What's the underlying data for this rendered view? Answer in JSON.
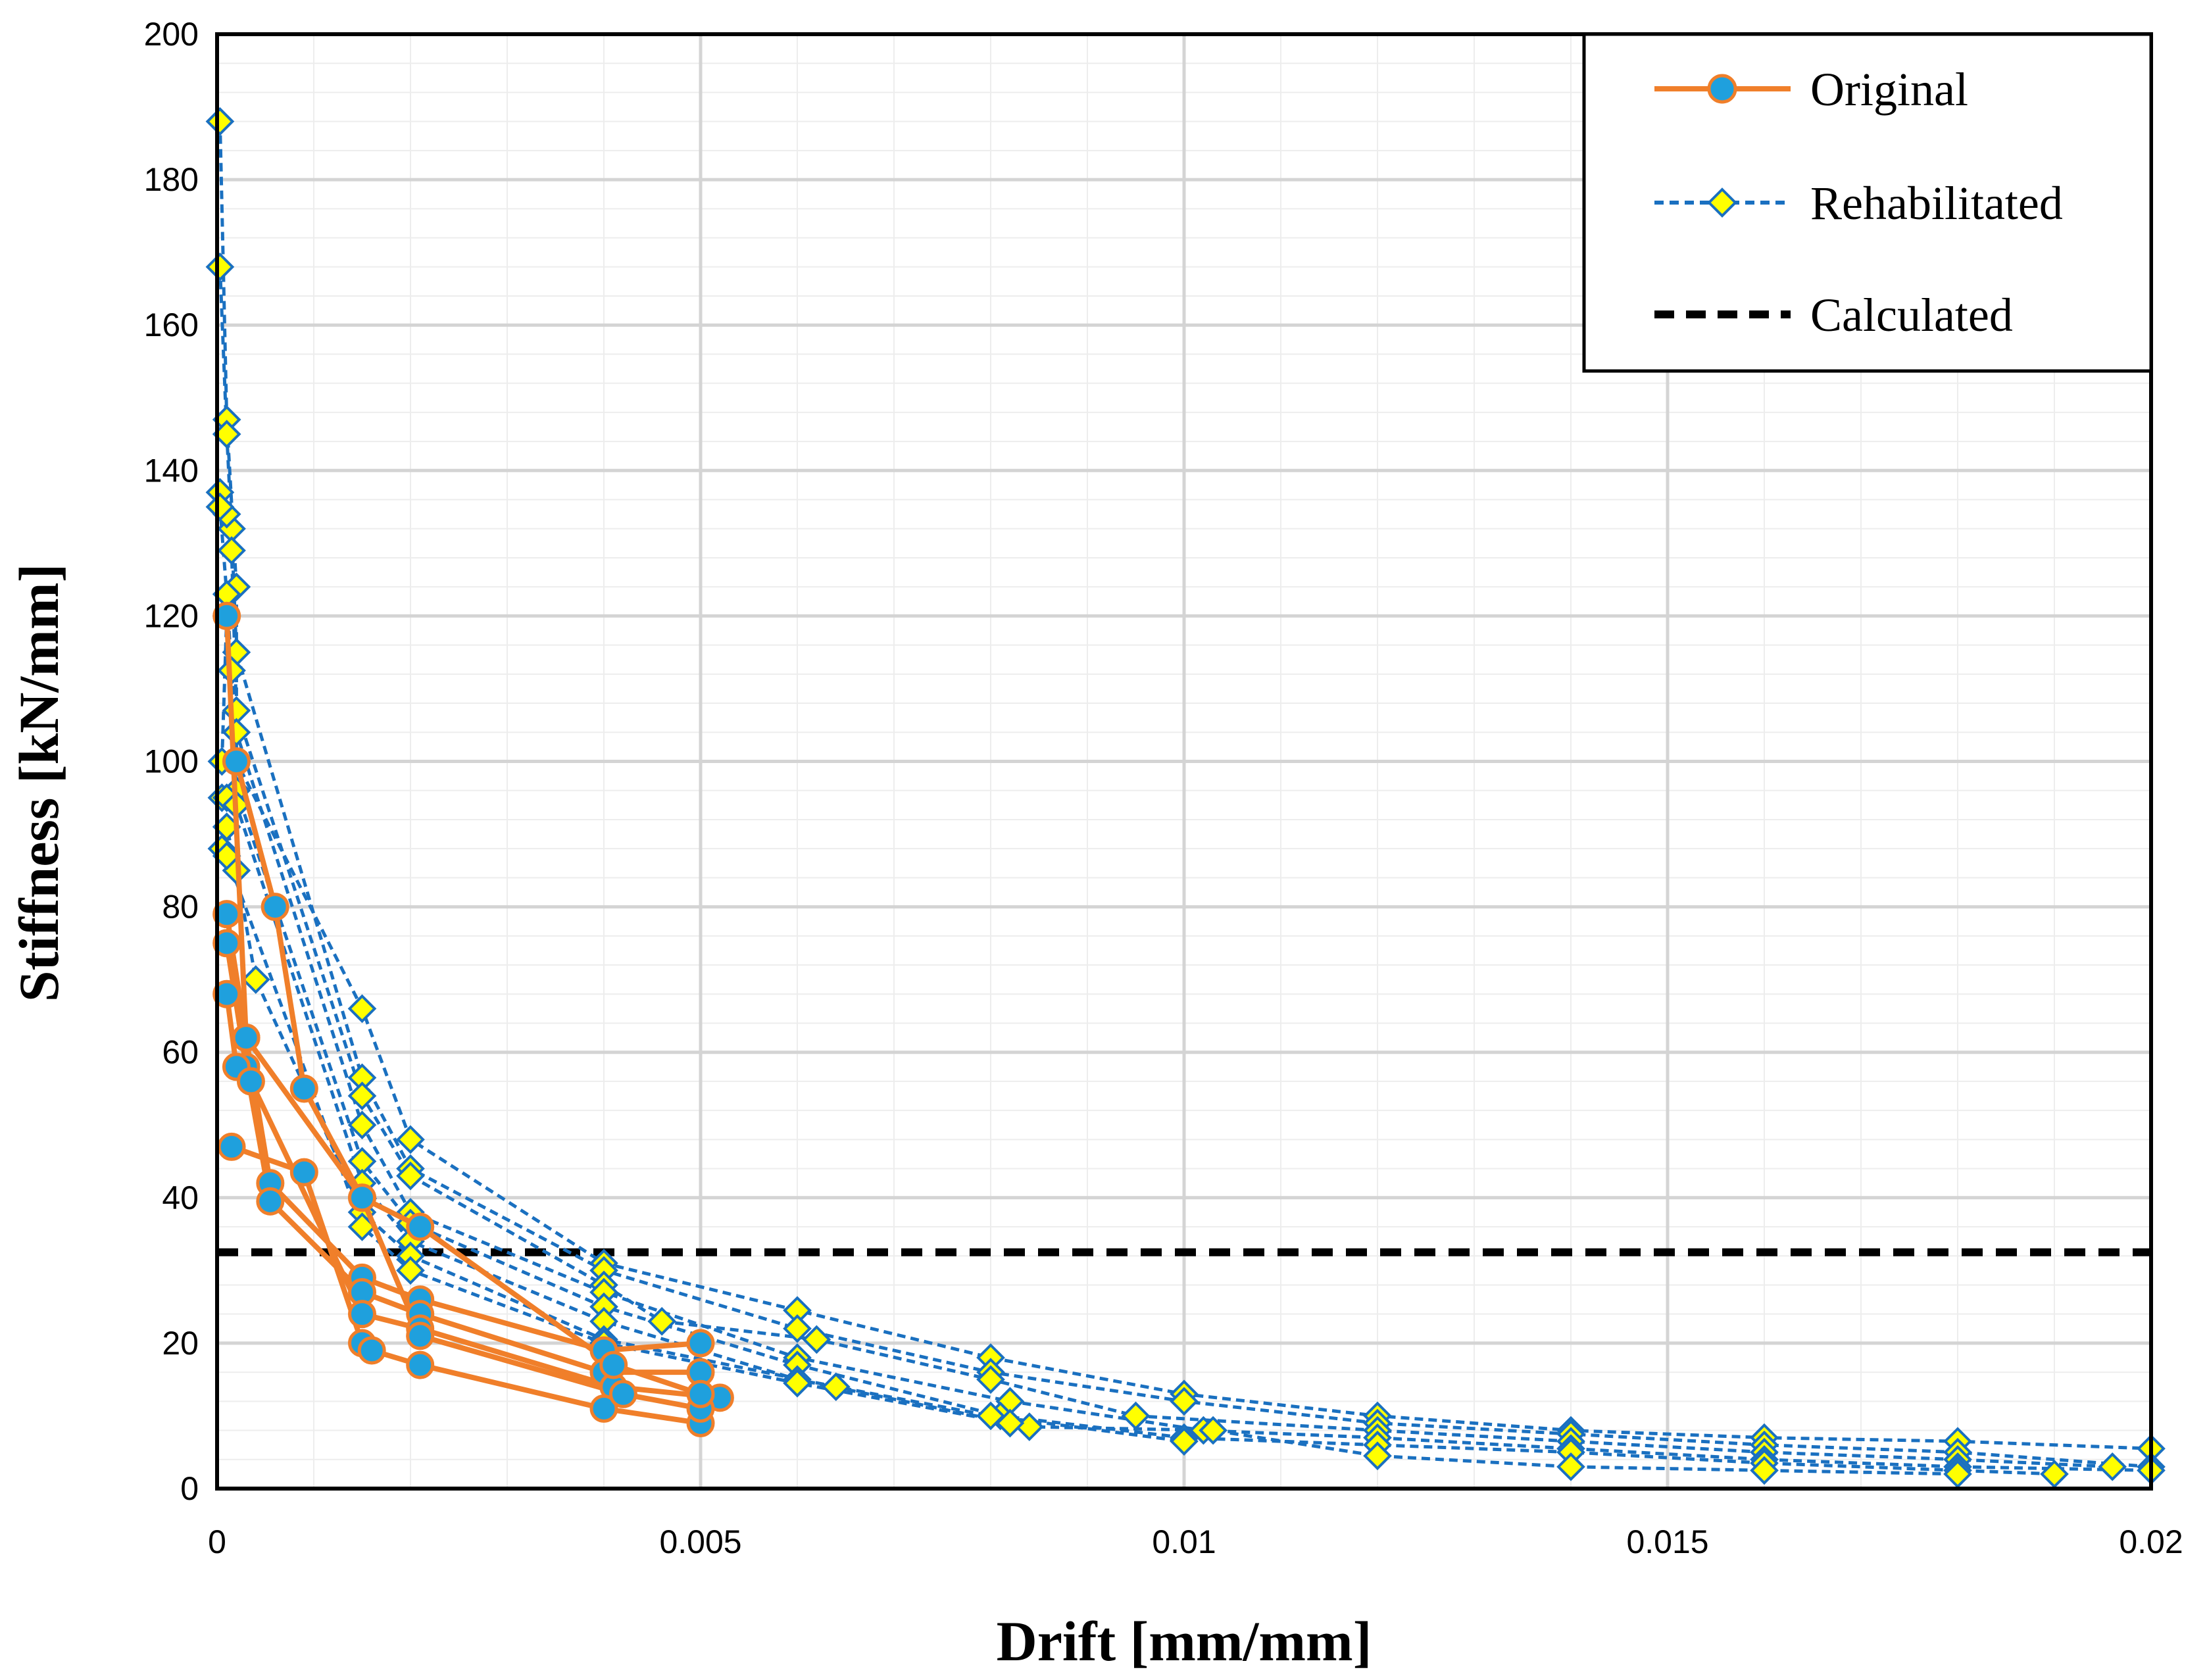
{
  "chart_data": {
    "type": "line",
    "title": "",
    "xlabel": "Drift [mm/mm]",
    "ylabel": "Stiffness  [kN/mm]",
    "xlim": [
      0,
      0.02
    ],
    "ylim": [
      0,
      200
    ],
    "x_ticks": [
      "0",
      "0.005",
      "0.01",
      "0.015",
      "0.02"
    ],
    "x_tick_values": [
      0,
      0.005,
      0.01,
      0.015,
      0.02
    ],
    "y_ticks": [
      "0",
      "20",
      "40",
      "60",
      "80",
      "100",
      "120",
      "140",
      "160",
      "180",
      "200"
    ],
    "y_tick_values": [
      0,
      20,
      40,
      60,
      80,
      100,
      120,
      140,
      160,
      180,
      200
    ],
    "grid": true,
    "minor_grid": true,
    "legend_position": "top-right",
    "colors": {
      "original_line": "#F07F2A",
      "original_marker": "#1FA0DD",
      "rehab_line": "#1A70C0",
      "rehab_marker": "#FFFF00",
      "calculated": "#000000"
    },
    "series": [
      {
        "name": "Original",
        "style": "solid-circle",
        "curves": [
          [
            [
              0.0001,
              79
            ],
            [
              0.0003,
              62
            ],
            [
              0.00055,
              42
            ],
            [
              0.0015,
              29
            ],
            [
              0.0021,
              26
            ],
            [
              0.004,
              19
            ],
            [
              0.005,
              20
            ]
          ],
          [
            [
              0.0001,
              75
            ],
            [
              0.0003,
              58
            ],
            [
              0.00055,
              39.5
            ],
            [
              0.0015,
              27
            ],
            [
              0.0021,
              24
            ],
            [
              0.004,
              16
            ],
            [
              0.005,
              16
            ]
          ],
          [
            [
              0.0001,
              68
            ],
            [
              0.0002,
              58
            ],
            [
              0.00035,
              56
            ],
            [
              0.0015,
              24
            ],
            [
              0.0021,
              22
            ],
            [
              0.0041,
              14
            ],
            [
              0.0052,
              12.5
            ]
          ],
          [
            [
              0.00015,
              47
            ],
            [
              0.0009,
              43.5
            ],
            [
              0.0015,
              20
            ],
            [
              0.0016,
              19
            ],
            [
              0.0021,
              17
            ],
            [
              0.004,
              11
            ],
            [
              0.005,
              9
            ]
          ],
          [
            [
              0.0002,
              100
            ],
            [
              0.0006,
              80
            ],
            [
              0.0009,
              55
            ],
            [
              0.0015,
              40
            ],
            [
              0.0021,
              21
            ],
            [
              0.0042,
              13
            ],
            [
              0.005,
              11
            ]
          ],
          [
            [
              0.0001,
              120
            ],
            [
              0.0003,
              62
            ],
            [
              0.0015,
              40
            ],
            [
              0.0021,
              36
            ],
            [
              0.0041,
              17
            ],
            [
              0.005,
              13
            ]
          ]
        ]
      },
      {
        "name": "Rehabilitated",
        "style": "dashed-diamond",
        "curves": [
          [
            [
              3e-05,
              188
            ],
            [
              0.0001,
              147
            ],
            [
              0.0002,
              124
            ],
            [
              0.0002,
              100
            ],
            [
              0.0015,
              66
            ],
            [
              0.002,
              48
            ],
            [
              0.004,
              31
            ],
            [
              0.006,
              24.5
            ],
            [
              0.008,
              18
            ],
            [
              0.01,
              13
            ],
            [
              0.012,
              10
            ],
            [
              0.014,
              8
            ],
            [
              0.016,
              7
            ],
            [
              0.018,
              6.5
            ],
            [
              0.02,
              5.5
            ]
          ],
          [
            [
              3e-05,
              168
            ],
            [
              0.0001,
              145
            ],
            [
              0.00015,
              132
            ],
            [
              0.0002,
              115
            ],
            [
              0.0015,
              56.5
            ],
            [
              0.002,
              44
            ],
            [
              0.004,
              30
            ],
            [
              0.006,
              22
            ],
            [
              0.008,
              16
            ],
            [
              0.01,
              12
            ],
            [
              0.012,
              9
            ],
            [
              0.014,
              7.5
            ],
            [
              0.016,
              6
            ],
            [
              0.018,
              5
            ],
            [
              0.02,
              3
            ]
          ],
          [
            [
              3e-05,
              137
            ],
            [
              0.0001,
              134
            ],
            [
              0.00015,
              129
            ],
            [
              0.0002,
              107
            ],
            [
              0.0015,
              54
            ],
            [
              0.002,
              43
            ],
            [
              0.004,
              28
            ],
            [
              0.0046,
              23
            ],
            [
              0.0062,
              20.5
            ],
            [
              0.008,
              15
            ],
            [
              0.0095,
              10
            ],
            [
              0.012,
              8
            ],
            [
              0.014,
              6.5
            ],
            [
              0.016,
              5
            ],
            [
              0.018,
              4
            ],
            [
              0.0196,
              3
            ]
          ],
          [
            [
              3e-05,
              135
            ],
            [
              0.0001,
              123
            ],
            [
              0.00015,
              112.5
            ],
            [
              0.0002,
              104
            ],
            [
              0.0015,
              50
            ],
            [
              0.002,
              38
            ],
            [
              0.004,
              27
            ],
            [
              0.006,
              18
            ],
            [
              0.0082,
              12
            ],
            [
              0.0102,
              8
            ],
            [
              0.012,
              7
            ],
            [
              0.014,
              5.5
            ],
            [
              0.016,
              4
            ],
            [
              0.018,
              3
            ],
            [
              0.02,
              2.5
            ]
          ],
          [
            [
              5e-05,
              100
            ],
            [
              0.0001,
              120
            ],
            [
              0.0002,
              96
            ],
            [
              0.0015,
              45
            ],
            [
              0.002,
              36.5
            ],
            [
              0.004,
              25
            ],
            [
              0.006,
              17
            ],
            [
              0.0081,
              10
            ],
            [
              0.01,
              7
            ],
            [
              0.012,
              6
            ],
            [
              0.014,
              5
            ],
            [
              0.016,
              3.5
            ],
            [
              0.018,
              2.5
            ],
            [
              0.019,
              2
            ]
          ],
          [
            [
              5e-05,
              95
            ],
            [
              0.0001,
              95
            ],
            [
              0.0002,
              94
            ],
            [
              0.0015,
              42
            ],
            [
              0.002,
              34
            ],
            [
              0.004,
              23
            ],
            [
              0.006,
              15
            ],
            [
              0.0084,
              8.5
            ],
            [
              0.0103,
              8
            ],
            [
              0.012,
              4.5
            ],
            [
              0.014,
              3
            ],
            [
              0.016,
              2.5
            ],
            [
              0.018,
              2
            ]
          ],
          [
            [
              5e-05,
              88
            ],
            [
              0.0001,
              91
            ],
            [
              0.0002,
              85
            ],
            [
              0.0004,
              70
            ],
            [
              0.0015,
              38
            ],
            [
              0.002,
              32
            ],
            [
              0.004,
              20.5
            ],
            [
              0.0064,
              14
            ],
            [
              0.008,
              10
            ],
            [
              0.01,
              6.5
            ]
          ],
          [
            [
              0.0001,
              87
            ],
            [
              0.0015,
              36
            ],
            [
              0.002,
              30
            ],
            [
              0.004,
              20
            ],
            [
              0.006,
              14.5
            ],
            [
              0.0082,
              9
            ]
          ]
        ]
      },
      {
        "name": "Calculated",
        "style": "dashed-black",
        "y": 32.5
      }
    ]
  }
}
